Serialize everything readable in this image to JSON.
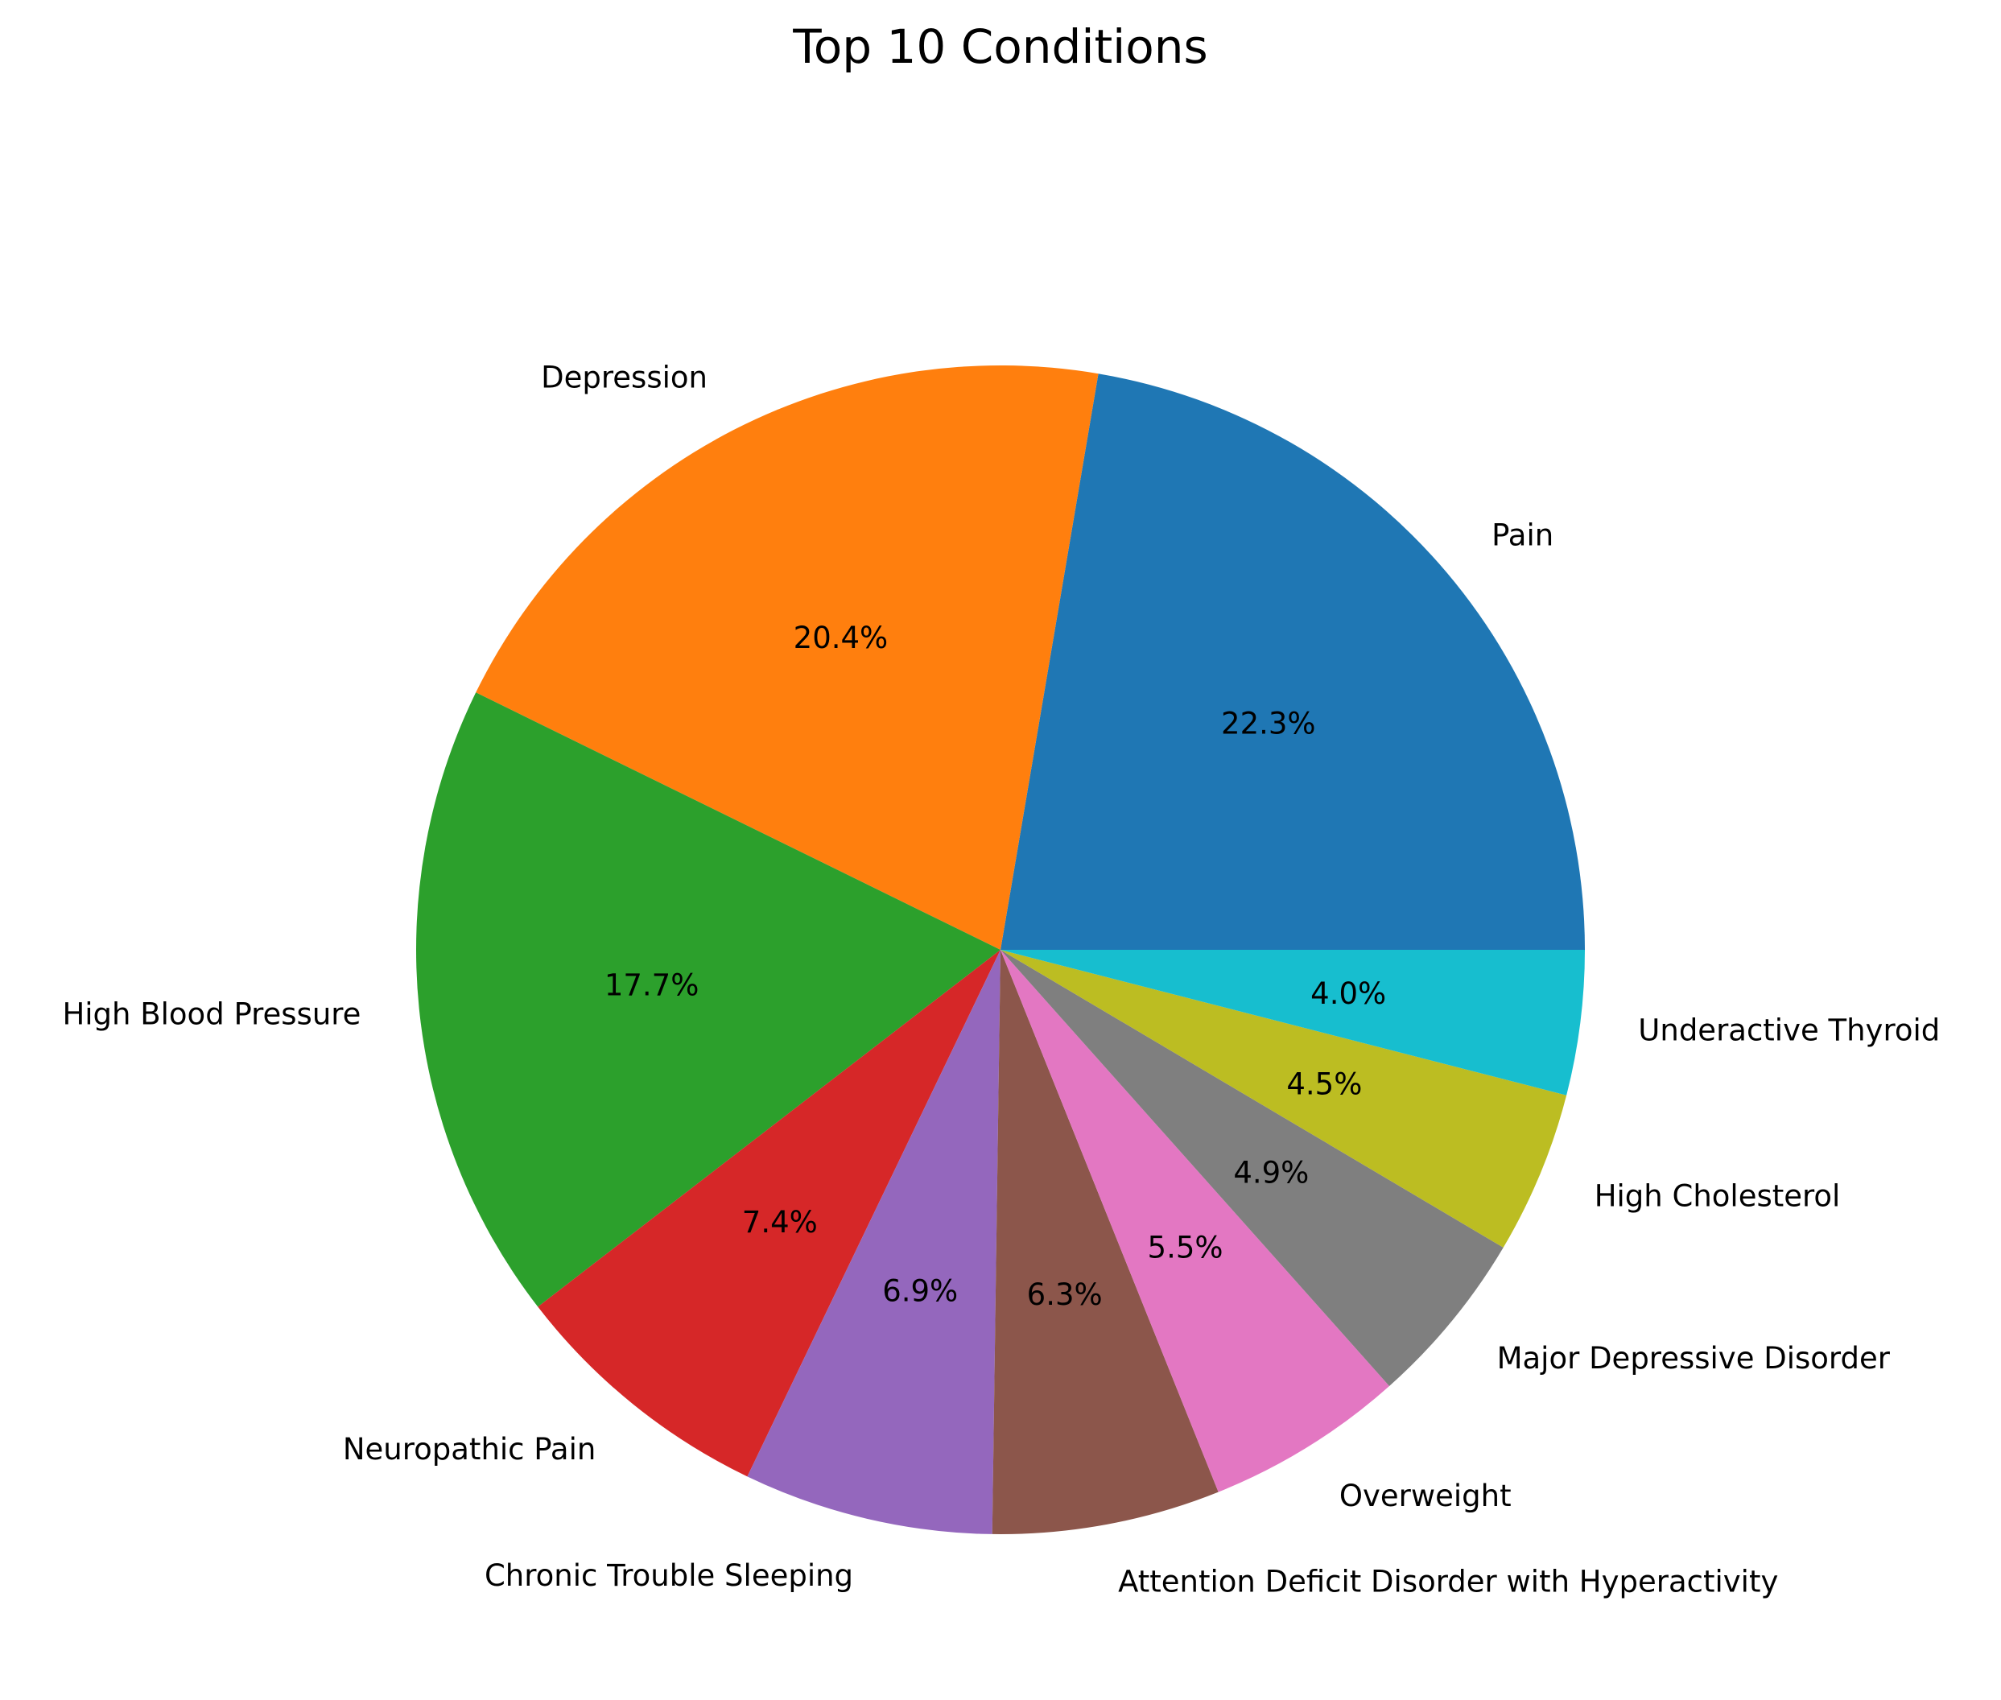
{
  "chart_data": {
    "type": "pie",
    "title": "Top 10 Conditions",
    "start_angle": 0,
    "direction": "counterclockwise",
    "slices": [
      {
        "label": "Pain",
        "percent": 22.3,
        "percent_label": "22.3%",
        "color": "#1f77b4"
      },
      {
        "label": "Depression",
        "percent": 20.4,
        "percent_label": "20.4%",
        "color": "#ff7f0e"
      },
      {
        "label": "High Blood Pressure",
        "percent": 17.7,
        "percent_label": "17.7%",
        "color": "#2ca02c"
      },
      {
        "label": "Neuropathic Pain",
        "percent": 7.4,
        "percent_label": "7.4%",
        "color": "#d62728"
      },
      {
        "label": "Chronic Trouble Sleeping",
        "percent": 6.9,
        "percent_label": "6.9%",
        "color": "#9467bd"
      },
      {
        "label": "Attention Deficit Disorder with Hyperactivity",
        "percent": 6.3,
        "percent_label": "6.3%",
        "color": "#8c564b"
      },
      {
        "label": "Overweight",
        "percent": 5.5,
        "percent_label": "5.5%",
        "color": "#e377c2"
      },
      {
        "label": "Major Depressive Disorder",
        "percent": 4.9,
        "percent_label": "4.9%",
        "color": "#7f7f7f"
      },
      {
        "label": "High Cholesterol",
        "percent": 4.5,
        "percent_label": "4.5%",
        "color": "#bcbd22"
      },
      {
        "label": "Underactive Thyroid",
        "percent": 4.0,
        "percent_label": "4.0%",
        "color": "#17becf"
      }
    ]
  }
}
